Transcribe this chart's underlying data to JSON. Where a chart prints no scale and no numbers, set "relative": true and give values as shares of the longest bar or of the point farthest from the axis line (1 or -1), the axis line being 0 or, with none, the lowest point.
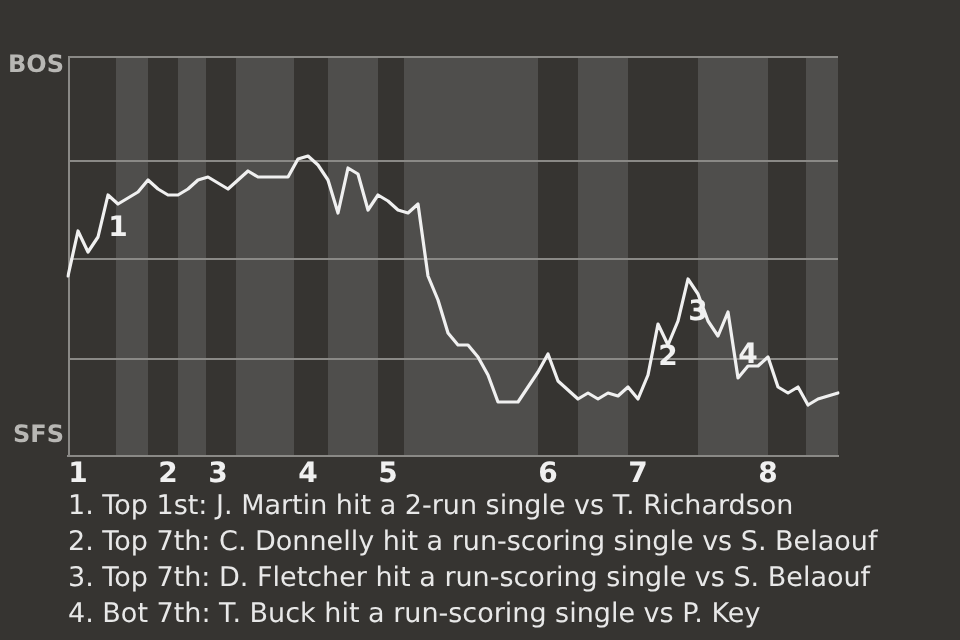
{
  "chart_data": {
    "type": "line",
    "relative": true,
    "categories": [
      null,
      "1",
      null,
      null,
      null,
      null,
      null,
      null,
      null,
      null,
      "2",
      null,
      null,
      null,
      null,
      "3",
      null,
      null,
      null,
      null,
      null,
      null,
      null,
      null,
      "4",
      null,
      null,
      null,
      null,
      null,
      null,
      null,
      "5",
      null,
      null,
      null,
      null,
      null,
      null,
      null,
      null,
      null,
      null,
      null,
      null,
      null,
      null,
      null,
      "6",
      null,
      null,
      null,
      null,
      null,
      null,
      null,
      null,
      "7",
      null,
      null,
      null,
      null,
      null,
      null,
      null,
      null,
      null,
      null,
      null,
      null,
      "8",
      null,
      null,
      null,
      null,
      null,
      null,
      null
    ],
    "series": [
      {
        "color": "#f0f0f0",
        "values": [
          0.6,
          0.75,
          0.68,
          0.73,
          0.87,
          0.84,
          0.86,
          0.88,
          0.92,
          0.89,
          0.87,
          0.87,
          0.89,
          0.92,
          0.93,
          0.91,
          0.89,
          0.92,
          0.95,
          0.93,
          0.93,
          0.93,
          0.93,
          0.99,
          1,
          0.97,
          0.92,
          0.81,
          0.96,
          0.94,
          0.82,
          0.87,
          0.85,
          0.82,
          0.81,
          0.84,
          0.6,
          0.52,
          0.41,
          0.37,
          0.37,
          0.33,
          0.27,
          0.18,
          0.18,
          0.18,
          0.23,
          0.28,
          0.34,
          0.25,
          0.22,
          0.19,
          0.21,
          0.19,
          0.21,
          0.2,
          0.23,
          0.19,
          0.27,
          0.44,
          0.37,
          0.45,
          0.59,
          0.54,
          0.45,
          0.4,
          0.48,
          0.26,
          0.3,
          0.3,
          0.33,
          0.23,
          0.21,
          0.23,
          0.17,
          0.19,
          0.2,
          0.21
        ]
      }
    ],
    "grid": false,
    "marker": "none",
    "line_style": "solid",
    "ref_lines": [
      {
        "axis": "y",
        "value": 0.33,
        "color": "#8a8986"
      },
      {
        "axis": "y",
        "value": 0.66,
        "color": "#8a8986"
      },
      {
        "axis": "y",
        "value": 0.99,
        "color": "#8a8986"
      }
    ],
    "annotations": [
      "BOS",
      "SFS",
      {
        "text": "1",
        "y": 0.87
      },
      {
        "text": "2",
        "y": 0.44
      },
      {
        "text": "3",
        "y": 0.59
      },
      {
        "text": "4",
        "y": 0.26
      },
      "1. Top 1st: J. Martin hit a 2-run single vs T. Richardson",
      "2. Top 7th: C. Donnelly hit a run-scoring single vs S. Belaouf",
      "3. Top 7th: D. Fletcher hit a run-scoring single vs S. Belaouf",
      "4. Bot 7th: T. Buck hit a run-scoring single vs P. Key"
    ]
  }
}
